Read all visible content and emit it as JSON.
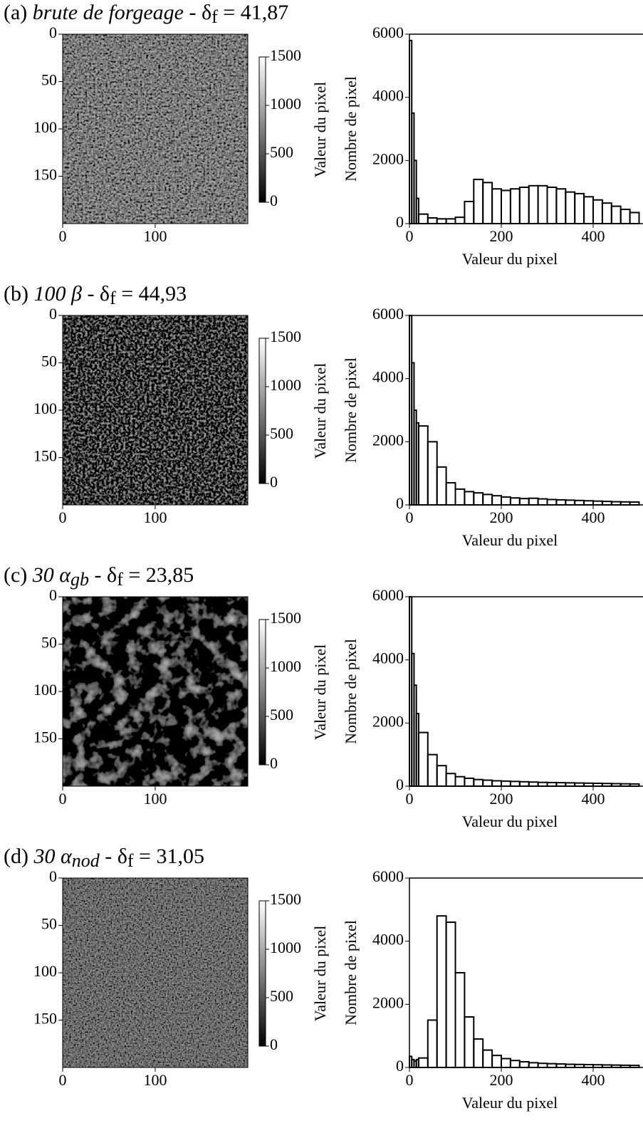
{
  "chart_data": [
    {
      "type": "heatmap",
      "title": [
        {
          "text": "(a) "
        },
        {
          "text": "brute de forgeage",
          "style": "italic"
        },
        {
          "text": " - δ"
        },
        {
          "text": "f",
          "style": "sub"
        },
        {
          "text": " = 41,87"
        }
      ],
      "xlim": [
        0,
        200
      ],
      "ylim": [
        200,
        0
      ],
      "xticks": [
        0,
        100
      ],
      "yticks": [
        0,
        50,
        100,
        150
      ],
      "colorbar": {
        "label": "Valeur du pixel",
        "lim": [
          0,
          1500
        ],
        "ticks": [
          0,
          500,
          1000,
          1500
        ]
      }
    },
    {
      "type": "histogram",
      "xlabel": "Valeur du pixel",
      "ylabel": "Nombre de pixel",
      "color": "#000000",
      "bins": [
        0,
        5,
        10,
        15,
        20,
        40,
        60,
        80,
        100,
        120,
        140,
        160,
        180,
        200,
        220,
        240,
        260,
        280,
        300,
        320,
        340,
        360,
        380,
        400,
        420,
        440,
        460,
        480,
        500
      ],
      "values": [
        5800,
        3500,
        2000,
        800,
        300,
        180,
        150,
        150,
        200,
        700,
        1400,
        1300,
        1100,
        1050,
        1100,
        1150,
        1200,
        1200,
        1150,
        1100,
        1000,
        950,
        850,
        750,
        650,
        550,
        450,
        350
      ],
      "xlim": [
        0,
        500
      ],
      "ylim": [
        0,
        6000
      ],
      "xticks": [
        0,
        200,
        400
      ],
      "yticks": [
        0,
        2000,
        4000,
        6000
      ]
    },
    {
      "type": "heatmap",
      "title": [
        {
          "text": "(b) "
        },
        {
          "text": "100 β",
          "style": "italic"
        },
        {
          "text": " - δ"
        },
        {
          "text": "f",
          "style": "sub"
        },
        {
          "text": " = 44,93"
        }
      ],
      "xlim": [
        0,
        200
      ],
      "ylim": [
        200,
        0
      ],
      "xticks": [
        0,
        100
      ],
      "yticks": [
        0,
        50,
        100,
        150
      ],
      "colorbar": {
        "label": "Valeur du pixel",
        "lim": [
          0,
          1500
        ],
        "ticks": [
          0,
          500,
          1000,
          1500
        ]
      }
    },
    {
      "type": "histogram",
      "xlabel": "Valeur du pixel",
      "ylabel": "Nombre de pixel",
      "color": "#000000",
      "bins": [
        0,
        5,
        10,
        15,
        20,
        40,
        60,
        80,
        100,
        120,
        140,
        160,
        180,
        200,
        220,
        240,
        260,
        280,
        300,
        320,
        340,
        360,
        380,
        400,
        420,
        440,
        460,
        480,
        500
      ],
      "values": [
        6000,
        4500,
        3000,
        2600,
        2500,
        2000,
        1200,
        700,
        500,
        420,
        380,
        330,
        290,
        250,
        220,
        200,
        210,
        190,
        170,
        160,
        150,
        140,
        130,
        120,
        110,
        100,
        95,
        90
      ],
      "xlim": [
        0,
        500
      ],
      "ylim": [
        0,
        6000
      ],
      "xticks": [
        0,
        200,
        400
      ],
      "yticks": [
        0,
        2000,
        4000,
        6000
      ]
    },
    {
      "type": "heatmap",
      "title": [
        {
          "text": "(c) "
        },
        {
          "text": "30 α",
          "style": "italic"
        },
        {
          "text": "gb",
          "style": "italic-sub"
        },
        {
          "text": " - δ"
        },
        {
          "text": "f",
          "style": "sub"
        },
        {
          "text": " = 23,85"
        }
      ],
      "xlim": [
        0,
        200
      ],
      "ylim": [
        200,
        0
      ],
      "xticks": [
        0,
        100
      ],
      "yticks": [
        0,
        50,
        100,
        150
      ],
      "colorbar": {
        "label": "Valeur du pixel",
        "lim": [
          0,
          1500
        ],
        "ticks": [
          0,
          500,
          1000,
          1500
        ]
      }
    },
    {
      "type": "histogram",
      "xlabel": "Valeur du pixel",
      "ylabel": "Nombre de pixel",
      "color": "#000000",
      "bins": [
        0,
        5,
        10,
        15,
        20,
        40,
        60,
        80,
        100,
        120,
        140,
        160,
        180,
        200,
        220,
        240,
        260,
        280,
        300,
        320,
        340,
        360,
        380,
        400,
        420,
        440,
        460,
        480,
        500
      ],
      "values": [
        6000,
        4200,
        3200,
        2300,
        1700,
        1000,
        650,
        400,
        300,
        250,
        210,
        190,
        170,
        160,
        150,
        140,
        130,
        120,
        115,
        110,
        105,
        100,
        95,
        90,
        85,
        80,
        75,
        70
      ],
      "xlim": [
        0,
        500
      ],
      "ylim": [
        0,
        6000
      ],
      "xticks": [
        0,
        200,
        400
      ],
      "yticks": [
        0,
        2000,
        4000,
        6000
      ]
    },
    {
      "type": "heatmap",
      "title": [
        {
          "text": "(d) "
        },
        {
          "text": "30 α",
          "style": "italic"
        },
        {
          "text": "nod",
          "style": "italic-sub"
        },
        {
          "text": " - δ"
        },
        {
          "text": "f",
          "style": "sub"
        },
        {
          "text": " = 31,05"
        }
      ],
      "xlim": [
        0,
        200
      ],
      "ylim": [
        200,
        0
      ],
      "xticks": [
        0,
        100
      ],
      "yticks": [
        0,
        50,
        100,
        150
      ],
      "colorbar": {
        "label": "Valeur du pixel",
        "lim": [
          0,
          1500
        ],
        "ticks": [
          0,
          500,
          1000,
          1500
        ]
      }
    },
    {
      "type": "histogram",
      "xlabel": "Valeur du pixel",
      "ylabel": "Nombre de pixel",
      "color": "#000000",
      "bins": [
        0,
        5,
        10,
        15,
        20,
        40,
        60,
        80,
        100,
        120,
        140,
        160,
        180,
        200,
        220,
        240,
        260,
        280,
        300,
        320,
        340,
        360,
        380,
        400,
        420,
        440,
        460,
        480,
        500
      ],
      "values": [
        350,
        250,
        200,
        250,
        300,
        1500,
        4800,
        4600,
        3000,
        1600,
        900,
        550,
        380,
        280,
        220,
        180,
        150,
        130,
        120,
        110,
        100,
        95,
        90,
        85,
        80,
        75,
        70,
        65
      ],
      "xlim": [
        0,
        500
      ],
      "ylim": [
        0,
        6000
      ],
      "xticks": [
        0,
        200,
        400
      ],
      "yticks": [
        0,
        2000,
        4000,
        6000
      ]
    }
  ]
}
